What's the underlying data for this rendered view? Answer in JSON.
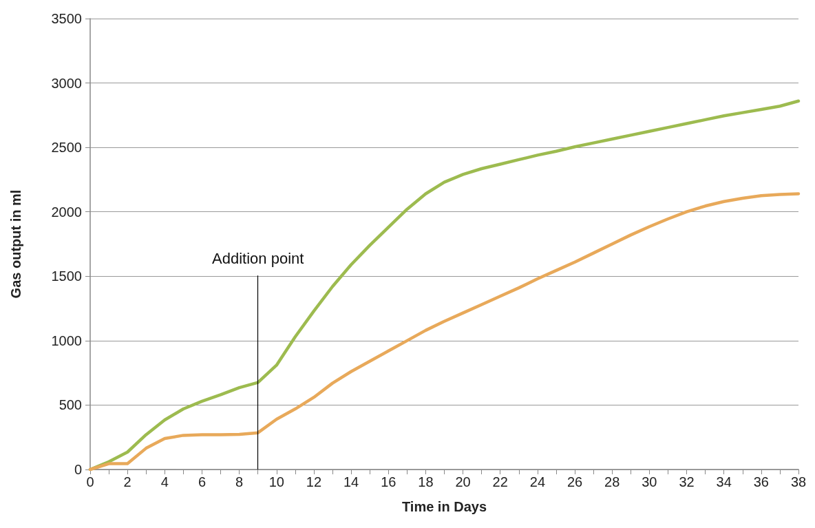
{
  "chart_data": {
    "type": "line",
    "xlabel": "Time in Days",
    "ylabel": "Gas output in ml",
    "x": [
      0,
      1,
      2,
      3,
      4,
      5,
      6,
      7,
      8,
      9,
      10,
      11,
      12,
      13,
      14,
      15,
      16,
      17,
      18,
      19,
      20,
      21,
      22,
      23,
      24,
      25,
      26,
      27,
      28,
      29,
      30,
      31,
      32,
      33,
      34,
      35,
      36,
      37,
      38
    ],
    "series": [
      {
        "color": "#9dbb4f",
        "values": [
          0,
          60,
          135,
          270,
          385,
          470,
          530,
          580,
          635,
          675,
          810,
          1030,
          1230,
          1420,
          1590,
          1740,
          1880,
          2020,
          2140,
          2230,
          2290,
          2335,
          2370,
          2405,
          2440,
          2470,
          2505,
          2535,
          2565,
          2595,
          2625,
          2655,
          2685,
          2715,
          2745,
          2770,
          2795,
          2820,
          2860
        ]
      },
      {
        "color": "#e8a95a",
        "values": [
          0,
          45,
          45,
          165,
          240,
          265,
          270,
          270,
          272,
          285,
          390,
          470,
          560,
          670,
          760,
          840,
          920,
          1000,
          1080,
          1150,
          1215,
          1280,
          1345,
          1410,
          1480,
          1545,
          1610,
          1680,
          1750,
          1820,
          1885,
          1945,
          2000,
          2045,
          2080,
          2105,
          2125,
          2135,
          2140
        ]
      }
    ],
    "xlim": [
      0,
      38
    ],
    "xticks": [
      0,
      {
        "value": 1,
        "label": null
      },
      2,
      {
        "value": 3,
        "label": null
      },
      4,
      {
        "value": 5,
        "label": null
      },
      6,
      {
        "value": 7,
        "label": null
      },
      8,
      {
        "value": 9,
        "label": null
      },
      10,
      {
        "value": 11,
        "label": null
      },
      12,
      {
        "value": 13,
        "label": null
      },
      14,
      {
        "value": 15,
        "label": null
      },
      16,
      {
        "value": 17,
        "label": null
      },
      18,
      {
        "value": 19,
        "label": null
      },
      20,
      {
        "value": 21,
        "label": null
      },
      22,
      {
        "value": 23,
        "label": null
      },
      24,
      {
        "value": 25,
        "label": null
      },
      26,
      {
        "value": 27,
        "label": null
      },
      28,
      {
        "value": 29,
        "label": null
      },
      30,
      {
        "value": 31,
        "label": null
      },
      32,
      {
        "value": 33,
        "label": null
      },
      34,
      {
        "value": 35,
        "label": null
      },
      36,
      {
        "value": 37,
        "label": null
      },
      38
    ],
    "ylim": [
      0,
      3500
    ],
    "yticks": [
      0,
      500,
      1000,
      1500,
      2000,
      2500,
      3000,
      3500
    ],
    "ref_lines": [
      {
        "axis": "x",
        "value": 9,
        "label": "Addition point",
        "color": "#000000"
      }
    ],
    "grid": "y",
    "marker": "none",
    "line_style": "solid"
  }
}
